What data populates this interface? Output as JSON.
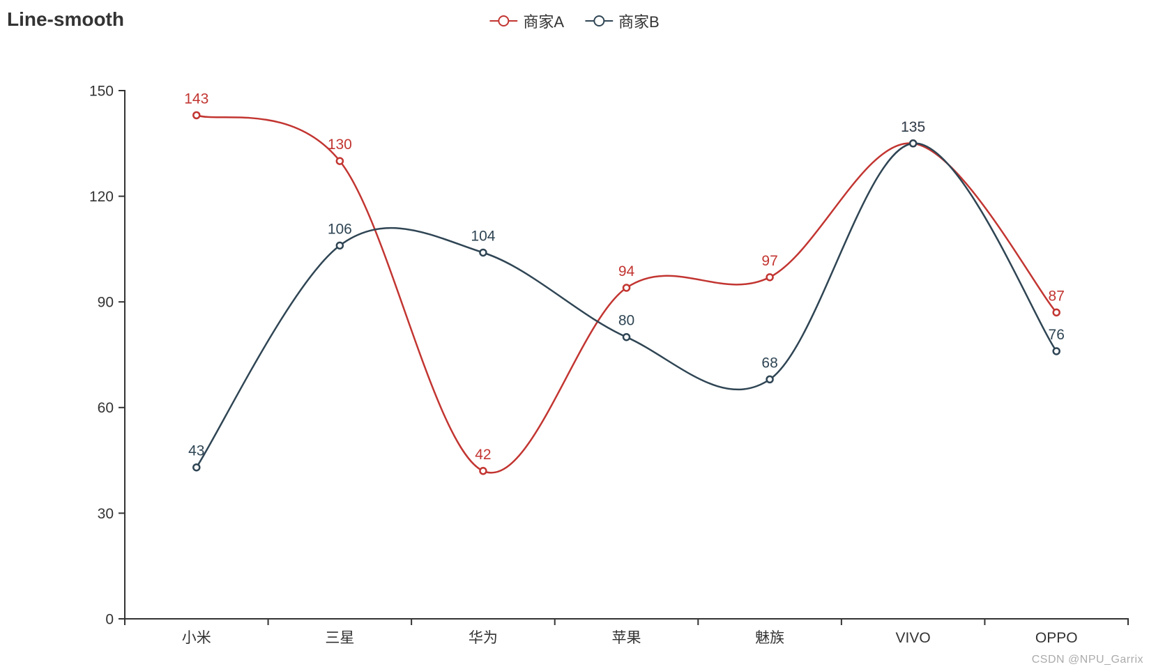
{
  "title": "Line-smooth",
  "watermark": "CSDN @NPU_Garrix",
  "legend": {
    "items": [
      {
        "label": "商家A",
        "color": "#c23531"
      },
      {
        "label": "商家B",
        "color": "#2f4554"
      }
    ]
  },
  "chart_data": {
    "type": "line",
    "smooth": true,
    "title": "Line-smooth",
    "categories": [
      "小米",
      "三星",
      "华为",
      "苹果",
      "魅族",
      "VIVO",
      "OPPO"
    ],
    "series": [
      {
        "name": "商家A",
        "color": "#c23531",
        "values": [
          143,
          130,
          42,
          94,
          97,
          135,
          87
        ]
      },
      {
        "name": "商家B",
        "color": "#2f4554",
        "values": [
          43,
          106,
          104,
          80,
          68,
          135,
          76
        ]
      }
    ],
    "xlabel": "",
    "ylabel": "",
    "ylim": [
      0,
      150
    ],
    "y_ticks": [
      0,
      30,
      60,
      90,
      120,
      150
    ],
    "grid": false,
    "point_labels": true,
    "legend_position": "top-center",
    "axis_color": "#333333"
  }
}
